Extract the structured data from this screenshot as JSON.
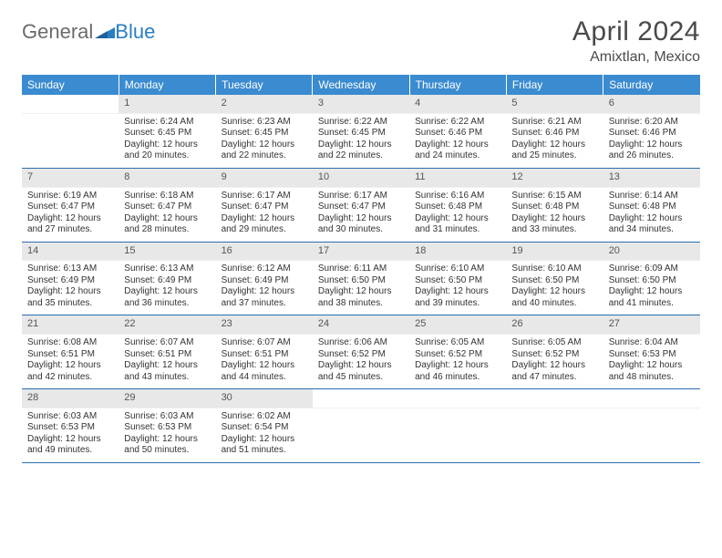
{
  "logo": {
    "text_gray": "General",
    "text_blue": "Blue"
  },
  "title": "April 2024",
  "location": "Amixtlan, Mexico",
  "colors": {
    "header_bg": "#3b8bd0",
    "header_text": "#ffffff",
    "daynum_bg": "#e8e8e8",
    "separator": "#2a6fb0",
    "logo_gray": "#6b6b6b",
    "logo_blue": "#2a7dc4"
  },
  "weekdays": [
    "Sunday",
    "Monday",
    "Tuesday",
    "Wednesday",
    "Thursday",
    "Friday",
    "Saturday"
  ],
  "weeks": [
    [
      null,
      {
        "n": "1",
        "sr": "6:24 AM",
        "ss": "6:45 PM",
        "dl": "12 hours and 20 minutes."
      },
      {
        "n": "2",
        "sr": "6:23 AM",
        "ss": "6:45 PM",
        "dl": "12 hours and 22 minutes."
      },
      {
        "n": "3",
        "sr": "6:22 AM",
        "ss": "6:45 PM",
        "dl": "12 hours and 22 minutes."
      },
      {
        "n": "4",
        "sr": "6:22 AM",
        "ss": "6:46 PM",
        "dl": "12 hours and 24 minutes."
      },
      {
        "n": "5",
        "sr": "6:21 AM",
        "ss": "6:46 PM",
        "dl": "12 hours and 25 minutes."
      },
      {
        "n": "6",
        "sr": "6:20 AM",
        "ss": "6:46 PM",
        "dl": "12 hours and 26 minutes."
      }
    ],
    [
      {
        "n": "7",
        "sr": "6:19 AM",
        "ss": "6:47 PM",
        "dl": "12 hours and 27 minutes."
      },
      {
        "n": "8",
        "sr": "6:18 AM",
        "ss": "6:47 PM",
        "dl": "12 hours and 28 minutes."
      },
      {
        "n": "9",
        "sr": "6:17 AM",
        "ss": "6:47 PM",
        "dl": "12 hours and 29 minutes."
      },
      {
        "n": "10",
        "sr": "6:17 AM",
        "ss": "6:47 PM",
        "dl": "12 hours and 30 minutes."
      },
      {
        "n": "11",
        "sr": "6:16 AM",
        "ss": "6:48 PM",
        "dl": "12 hours and 31 minutes."
      },
      {
        "n": "12",
        "sr": "6:15 AM",
        "ss": "6:48 PM",
        "dl": "12 hours and 33 minutes."
      },
      {
        "n": "13",
        "sr": "6:14 AM",
        "ss": "6:48 PM",
        "dl": "12 hours and 34 minutes."
      }
    ],
    [
      {
        "n": "14",
        "sr": "6:13 AM",
        "ss": "6:49 PM",
        "dl": "12 hours and 35 minutes."
      },
      {
        "n": "15",
        "sr": "6:13 AM",
        "ss": "6:49 PM",
        "dl": "12 hours and 36 minutes."
      },
      {
        "n": "16",
        "sr": "6:12 AM",
        "ss": "6:49 PM",
        "dl": "12 hours and 37 minutes."
      },
      {
        "n": "17",
        "sr": "6:11 AM",
        "ss": "6:50 PM",
        "dl": "12 hours and 38 minutes."
      },
      {
        "n": "18",
        "sr": "6:10 AM",
        "ss": "6:50 PM",
        "dl": "12 hours and 39 minutes."
      },
      {
        "n": "19",
        "sr": "6:10 AM",
        "ss": "6:50 PM",
        "dl": "12 hours and 40 minutes."
      },
      {
        "n": "20",
        "sr": "6:09 AM",
        "ss": "6:50 PM",
        "dl": "12 hours and 41 minutes."
      }
    ],
    [
      {
        "n": "21",
        "sr": "6:08 AM",
        "ss": "6:51 PM",
        "dl": "12 hours and 42 minutes."
      },
      {
        "n": "22",
        "sr": "6:07 AM",
        "ss": "6:51 PM",
        "dl": "12 hours and 43 minutes."
      },
      {
        "n": "23",
        "sr": "6:07 AM",
        "ss": "6:51 PM",
        "dl": "12 hours and 44 minutes."
      },
      {
        "n": "24",
        "sr": "6:06 AM",
        "ss": "6:52 PM",
        "dl": "12 hours and 45 minutes."
      },
      {
        "n": "25",
        "sr": "6:05 AM",
        "ss": "6:52 PM",
        "dl": "12 hours and 46 minutes."
      },
      {
        "n": "26",
        "sr": "6:05 AM",
        "ss": "6:52 PM",
        "dl": "12 hours and 47 minutes."
      },
      {
        "n": "27",
        "sr": "6:04 AM",
        "ss": "6:53 PM",
        "dl": "12 hours and 48 minutes."
      }
    ],
    [
      {
        "n": "28",
        "sr": "6:03 AM",
        "ss": "6:53 PM",
        "dl": "12 hours and 49 minutes."
      },
      {
        "n": "29",
        "sr": "6:03 AM",
        "ss": "6:53 PM",
        "dl": "12 hours and 50 minutes."
      },
      {
        "n": "30",
        "sr": "6:02 AM",
        "ss": "6:54 PM",
        "dl": "12 hours and 51 minutes."
      },
      null,
      null,
      null,
      null
    ]
  ],
  "labels": {
    "sunrise": "Sunrise:",
    "sunset": "Sunset:",
    "daylight": "Daylight:"
  }
}
